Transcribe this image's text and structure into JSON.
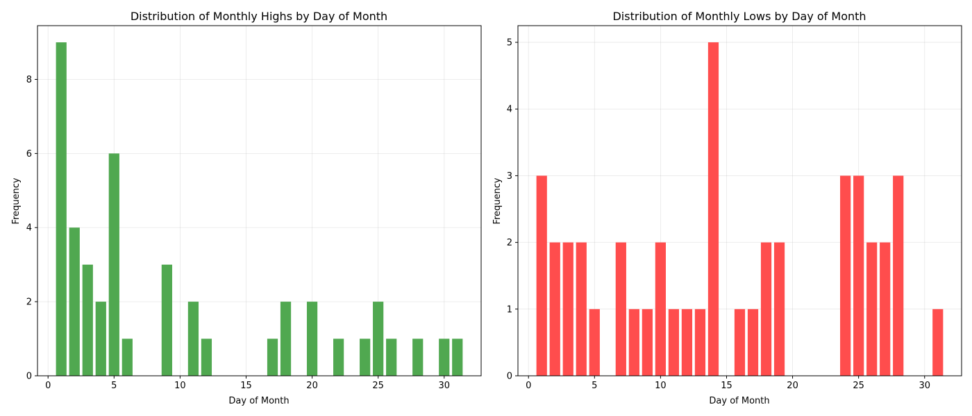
{
  "chart_data": [
    {
      "type": "bar",
      "title": "Distribution of Monthly Highs by Day of Month",
      "xlabel": "Day of Month",
      "ylabel": "Frequency",
      "x": [
        1,
        2,
        3,
        4,
        5,
        6,
        9,
        11,
        12,
        17,
        18,
        20,
        22,
        24,
        25,
        26,
        28,
        30,
        31
      ],
      "values": [
        9,
        4,
        3,
        2,
        6,
        1,
        3,
        2,
        1,
        1,
        2,
        2,
        1,
        1,
        2,
        1,
        1,
        1,
        1
      ],
      "xlim": [
        -0.8,
        32.8
      ],
      "ylim": [
        0,
        9.45
      ],
      "xticks": [
        0,
        5,
        10,
        15,
        20,
        25,
        30
      ],
      "yticks": [
        0,
        2,
        4,
        6,
        8
      ],
      "grid": true,
      "color": "#50a850"
    },
    {
      "type": "bar",
      "title": "Distribution of Monthly Lows by Day of Month",
      "xlabel": "Day of Month",
      "ylabel": "Frequency",
      "x": [
        1,
        2,
        3,
        4,
        5,
        7,
        8,
        9,
        10,
        11,
        12,
        13,
        14,
        16,
        17,
        18,
        19,
        24,
        25,
        26,
        27,
        28,
        31
      ],
      "values": [
        3,
        2,
        2,
        2,
        1,
        2,
        1,
        1,
        2,
        1,
        1,
        1,
        5,
        1,
        1,
        2,
        2,
        3,
        3,
        2,
        2,
        3,
        1
      ],
      "xlim": [
        -0.8,
        32.8
      ],
      "ylim": [
        0,
        5.25
      ],
      "xticks": [
        0,
        5,
        10,
        15,
        20,
        25,
        30
      ],
      "yticks": [
        0,
        1,
        2,
        3,
        4,
        5
      ],
      "grid": true,
      "color": "#ff4d4d"
    }
  ]
}
